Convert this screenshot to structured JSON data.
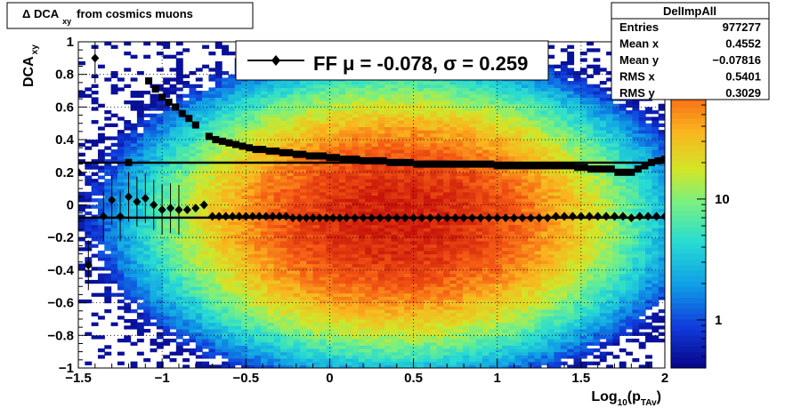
{
  "title_box": {
    "prefix": "Δ DCA",
    "sub": "xy",
    "suffix": "from cosmics muons"
  },
  "stats_box": {
    "name": "DelImpAll",
    "rows": [
      {
        "label": "Entries",
        "value": "977277"
      },
      {
        "label": "Mean x",
        "value": "0.4552"
      },
      {
        "label": "Mean y",
        "value": "−0.07816"
      },
      {
        "label": "RMS x",
        "value": "0.5401"
      },
      {
        "label": "RMS y",
        "value": "0.3029"
      }
    ]
  },
  "legend": {
    "label": "FF μ = -0.078, σ =   0.259"
  },
  "chart_data": {
    "type": "heatmap",
    "xlabel": "Log10(pTAv)",
    "xlabel_main": "Log",
    "xlabel_sub1": "10",
    "xlabel_mid": "(p",
    "xlabel_sub2": "TAv",
    "xlabel_end": ")",
    "ylabel_main": "DCA",
    "ylabel_sub": "xy",
    "xlim": [
      -1.5,
      2
    ],
    "ylim": [
      -1,
      1
    ],
    "x_ticks": [
      "−1.5",
      "−1",
      "−0.5",
      "0",
      "0.5",
      "1",
      "1.5",
      "2"
    ],
    "x_tick_values": [
      -1.5,
      -1,
      -0.5,
      0,
      0.5,
      1,
      1.5,
      2
    ],
    "y_ticks": [
      "−1",
      "−0.8",
      "−0.6",
      "−0.4",
      "−0.2",
      "0",
      "0.2",
      "0.4",
      "0.6",
      "0.8",
      "1"
    ],
    "y_tick_values": [
      -1,
      -0.8,
      -0.6,
      -0.4,
      -0.2,
      0,
      0.2,
      0.4,
      0.6,
      0.8,
      1
    ],
    "grid": true,
    "z_scale": "log",
    "z_ticks": [
      {
        "label": "1",
        "value": 1
      },
      {
        "label": "10",
        "value": 10
      }
    ],
    "z_range": [
      0.4,
      200
    ],
    "reference_lines": [
      0.259,
      -0.078
    ],
    "series": [
      {
        "marker": "square",
        "x": [
          -1.2,
          -1.08,
          -1.04,
          -1.0,
          -0.96,
          -0.92,
          -0.88,
          -0.84,
          -0.8,
          -0.72,
          -0.68,
          -0.64,
          -0.6,
          -0.56,
          -0.52,
          -0.48,
          -0.44,
          -0.4,
          -0.36,
          -0.32,
          -0.28,
          -0.24,
          -0.2,
          -0.16,
          -0.12,
          -0.08,
          -0.04,
          0.0,
          0.04,
          0.08,
          0.12,
          0.16,
          0.2,
          0.24,
          0.28,
          0.32,
          0.36,
          0.4,
          0.44,
          0.48,
          0.52,
          0.56,
          0.6,
          0.64,
          0.68,
          0.72,
          0.76,
          0.8,
          0.84,
          0.88,
          0.92,
          0.96,
          1.0,
          1.04,
          1.08,
          1.12,
          1.16,
          1.2,
          1.24,
          1.28,
          1.32,
          1.36,
          1.4,
          1.44,
          1.48,
          1.52,
          1.56,
          1.6,
          1.64,
          1.68,
          1.72,
          1.76,
          1.8,
          1.84,
          1.88,
          1.92,
          1.96,
          2.0
        ],
        "y": [
          0.26,
          0.76,
          0.71,
          0.66,
          0.63,
          0.6,
          0.56,
          0.53,
          0.49,
          0.42,
          0.4,
          0.39,
          0.38,
          0.37,
          0.36,
          0.35,
          0.34,
          0.34,
          0.33,
          0.33,
          0.32,
          0.32,
          0.31,
          0.31,
          0.3,
          0.3,
          0.3,
          0.29,
          0.29,
          0.28,
          0.28,
          0.28,
          0.27,
          0.27,
          0.27,
          0.27,
          0.26,
          0.26,
          0.26,
          0.26,
          0.25,
          0.25,
          0.25,
          0.25,
          0.25,
          0.25,
          0.25,
          0.25,
          0.25,
          0.25,
          0.25,
          0.25,
          0.24,
          0.24,
          0.24,
          0.24,
          0.24,
          0.24,
          0.24,
          0.24,
          0.24,
          0.24,
          0.24,
          0.24,
          0.23,
          0.23,
          0.22,
          0.22,
          0.22,
          0.22,
          0.2,
          0.2,
          0.2,
          0.22,
          0.24,
          0.26,
          0.27,
          0.28
        ]
      },
      {
        "marker": "diamond",
        "x": [
          -1.5,
          -1.44,
          -1.4,
          -1.35,
          -1.3,
          -1.25,
          -1.2,
          -1.15,
          -1.1,
          -1.05,
          -1.0,
          -0.95,
          -0.9,
          -0.85,
          -0.8,
          -0.75,
          -0.7,
          -0.66,
          -0.62,
          -0.58,
          -0.54,
          -0.5,
          -0.46,
          -0.42,
          -0.38,
          -0.34,
          -0.3,
          -0.26,
          -0.22,
          -0.18,
          -0.14,
          -0.1,
          -0.06,
          -0.02,
          0.02,
          0.06,
          0.1,
          0.15,
          0.2,
          0.25,
          0.3,
          0.35,
          0.4,
          0.45,
          0.5,
          0.55,
          0.6,
          0.65,
          0.7,
          0.75,
          0.8,
          0.85,
          0.9,
          0.95,
          1.0,
          1.05,
          1.1,
          1.15,
          1.2,
          1.25,
          1.3,
          1.35,
          1.4,
          1.45,
          1.5,
          1.55,
          1.6,
          1.65,
          1.7,
          1.75,
          1.8,
          1.85,
          1.9,
          1.95,
          2.0
        ],
        "y": [
          0.2,
          -0.37,
          0.9,
          -0.07,
          0.03,
          -0.07,
          0.05,
          0.02,
          0.04,
          0.0,
          -0.03,
          -0.02,
          -0.03,
          -0.03,
          -0.02,
          0.0,
          -0.07,
          -0.07,
          -0.07,
          -0.07,
          -0.07,
          -0.07,
          -0.07,
          -0.07,
          -0.07,
          -0.07,
          -0.07,
          -0.07,
          -0.08,
          -0.08,
          -0.08,
          -0.08,
          -0.08,
          -0.08,
          -0.08,
          -0.08,
          -0.08,
          -0.08,
          -0.08,
          -0.08,
          -0.08,
          -0.08,
          -0.08,
          -0.08,
          -0.08,
          -0.08,
          -0.08,
          -0.08,
          -0.08,
          -0.08,
          -0.08,
          -0.08,
          -0.08,
          -0.08,
          -0.08,
          -0.08,
          -0.08,
          -0.08,
          -0.08,
          -0.08,
          -0.08,
          -0.07,
          -0.07,
          -0.07,
          -0.07,
          -0.07,
          -0.07,
          -0.07,
          -0.07,
          -0.07,
          -0.08,
          -0.07,
          -0.07,
          -0.07,
          -0.07
        ]
      }
    ]
  }
}
